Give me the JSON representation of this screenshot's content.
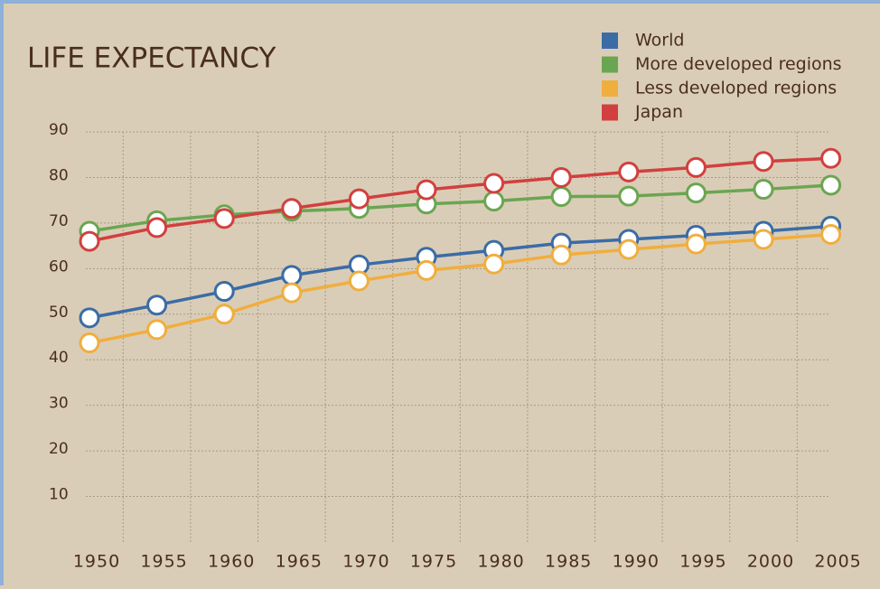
{
  "chart_data": {
    "type": "line",
    "title": "LIFE EXPECTANCY",
    "categories": [
      "1950",
      "1955",
      "1960",
      "1965",
      "1970",
      "1975",
      "1980",
      "1985",
      "1990",
      "1995",
      "2000",
      "2005"
    ],
    "series": [
      {
        "name": "World",
        "color": "#3b6ca6",
        "values": [
          49.2,
          52,
          55,
          58.5,
          60.8,
          62.5,
          64,
          65.6,
          66.4,
          67.3,
          68.2,
          69.3
        ]
      },
      {
        "name": "More developed regions",
        "color": "#6aa651",
        "values": [
          68.2,
          70.5,
          71.8,
          72.6,
          73.2,
          74.2,
          74.8,
          75.8,
          75.9,
          76.6,
          77.4,
          78.3
        ]
      },
      {
        "name": "Less developed regions",
        "color": "#f0ae3e",
        "values": [
          43.7,
          46.6,
          50,
          54.7,
          57.3,
          59.6,
          61,
          63,
          64.2,
          65.4,
          66.4,
          67.5
        ]
      },
      {
        "name": "Japan",
        "color": "#d1403f",
        "values": [
          66,
          69,
          71,
          73.2,
          75.3,
          77.3,
          78.7,
          80,
          81.2,
          82.2,
          83.5,
          84.2
        ]
      }
    ],
    "ylim": [
      0,
      90
    ],
    "yticks": [
      10,
      20,
      30,
      40,
      50,
      60,
      70,
      80,
      90
    ],
    "grid": true
  }
}
